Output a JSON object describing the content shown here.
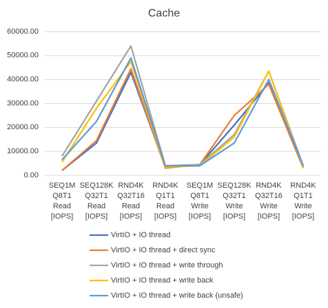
{
  "chart_data": {
    "type": "line",
    "title": "Cache",
    "categories": [
      [
        "SEQ1M",
        "Q8T1",
        "Read",
        "[IOPS]"
      ],
      [
        "SEQ128K",
        "Q32T1",
        "Read",
        "[IOPS]"
      ],
      [
        "RND4K",
        "Q32T16",
        "Read",
        "[IOPS]"
      ],
      [
        "RND4K",
        "Q1T1",
        "Read",
        "[IOPS]"
      ],
      [
        "SEQ1M",
        "Q8T1",
        "Write",
        "[IOPS]"
      ],
      [
        "SEQ128K",
        "Q32T1",
        "Write",
        "[IOPS]"
      ],
      [
        "RND4K",
        "Q32T16",
        "Write",
        "[IOPS]"
      ],
      [
        "RND4K",
        "Q1T1",
        "Write",
        "[IOPS]"
      ]
    ],
    "series": [
      {
        "name": "VirtIO + IO thread",
        "color": "#4472c4",
        "values": [
          2000,
          13500,
          43000,
          3500,
          4500,
          21000,
          38500,
          3500
        ]
      },
      {
        "name": "VirtIO + IO thread + direct sync",
        "color": "#ed7d31",
        "values": [
          2000,
          14500,
          44500,
          3000,
          4500,
          25000,
          38000,
          3000
        ]
      },
      {
        "name": "VirtIO + IO thread + write through",
        "color": "#a5a5a5",
        "values": [
          8000,
          31000,
          54000,
          4000,
          4500,
          17000,
          43500,
          4000
        ]
      },
      {
        "name": "VirtIO + IO thread + write back",
        "color": "#ffc000",
        "values": [
          5500,
          28000,
          47500,
          3500,
          4000,
          16000,
          43500,
          3000
        ]
      },
      {
        "name": "VirtIO + IO thread + write back (unsafe)",
        "color": "#5b9bd5",
        "values": [
          6500,
          22500,
          49000,
          4000,
          4000,
          13500,
          40000,
          4000
        ]
      }
    ],
    "ylim": [
      0,
      60000
    ],
    "yticks": [
      {
        "value": 0,
        "label": "0.00"
      },
      {
        "value": 10000,
        "label": "10000.00"
      },
      {
        "value": 20000,
        "label": "20000.00"
      },
      {
        "value": 30000,
        "label": "30000.00"
      },
      {
        "value": 40000,
        "label": "40000.00"
      },
      {
        "value": 50000,
        "label": "50000.00"
      },
      {
        "value": 60000,
        "label": "60000.00"
      }
    ],
    "grid": true,
    "legend": "bottom"
  }
}
